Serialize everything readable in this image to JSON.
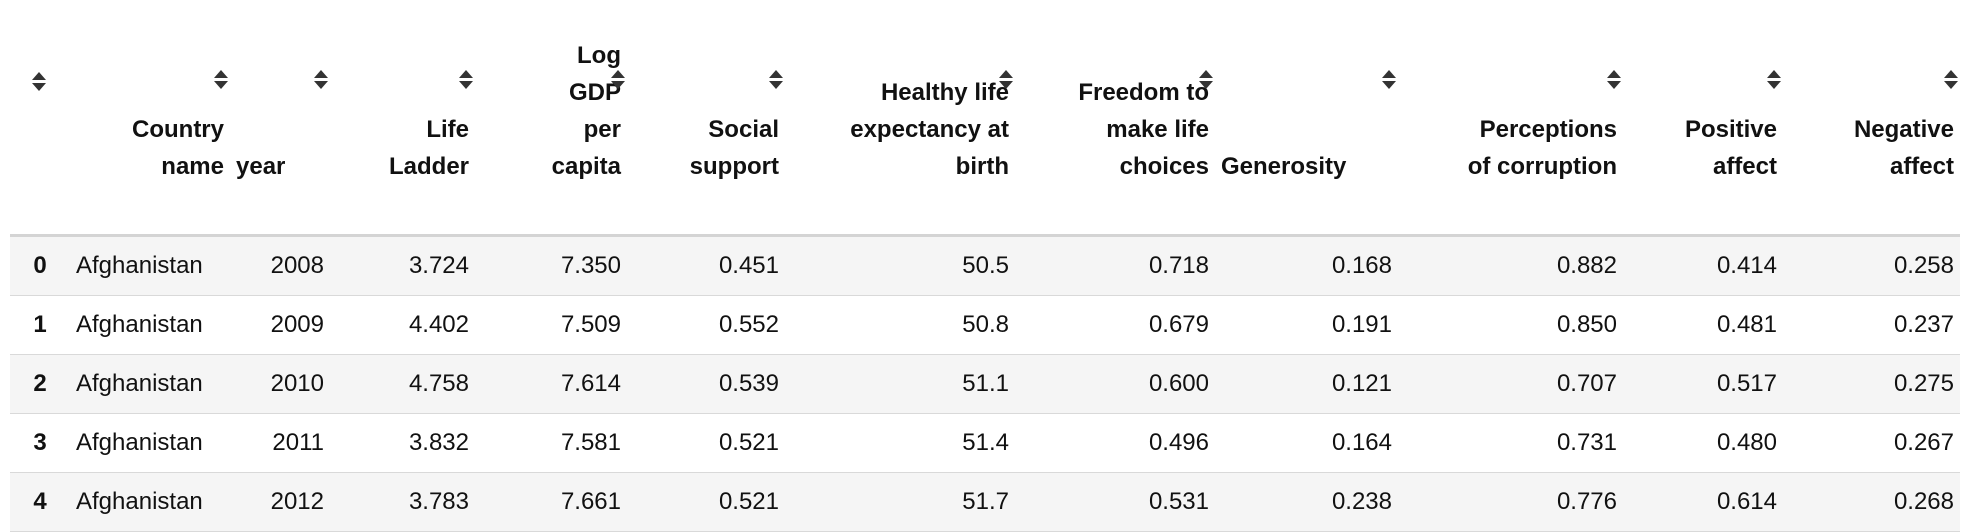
{
  "table": {
    "columns": [
      {
        "label": "",
        "key": "index"
      },
      {
        "label": "Country\nname",
        "key": "country"
      },
      {
        "label": "year",
        "key": "year"
      },
      {
        "label": "Life\nLadder",
        "key": "life_ladder"
      },
      {
        "label": "Log\nGDP\nper\ncapita",
        "key": "log_gdp"
      },
      {
        "label": "Social\nsupport",
        "key": "social_support"
      },
      {
        "label": "Healthy life\nexpectancy at\nbirth",
        "key": "life_expectancy"
      },
      {
        "label": "Freedom to\nmake life\nchoices",
        "key": "freedom"
      },
      {
        "label": "Generosity",
        "key": "generosity"
      },
      {
        "label": "Perceptions\nof corruption",
        "key": "corruption"
      },
      {
        "label": "Positive\naffect",
        "key": "positive_affect"
      },
      {
        "label": "Negative\naffect",
        "key": "negative_affect"
      }
    ],
    "rows": [
      [
        "0",
        "Afghanistan",
        "2008",
        "3.724",
        "7.350",
        "0.451",
        "50.5",
        "0.718",
        "0.168",
        "0.882",
        "0.414",
        "0.258"
      ],
      [
        "1",
        "Afghanistan",
        "2009",
        "4.402",
        "7.509",
        "0.552",
        "50.8",
        "0.679",
        "0.191",
        "0.850",
        "0.481",
        "0.237"
      ],
      [
        "2",
        "Afghanistan",
        "2010",
        "4.758",
        "7.614",
        "0.539",
        "51.1",
        "0.600",
        "0.121",
        "0.707",
        "0.517",
        "0.275"
      ],
      [
        "3",
        "Afghanistan",
        "2011",
        "3.832",
        "7.581",
        "0.521",
        "51.4",
        "0.496",
        "0.164",
        "0.731",
        "0.480",
        "0.267"
      ],
      [
        "4",
        "Afghanistan",
        "2012",
        "3.783",
        "7.661",
        "0.521",
        "51.7",
        "0.531",
        "0.238",
        "0.776",
        "0.614",
        "0.268"
      ]
    ]
  }
}
